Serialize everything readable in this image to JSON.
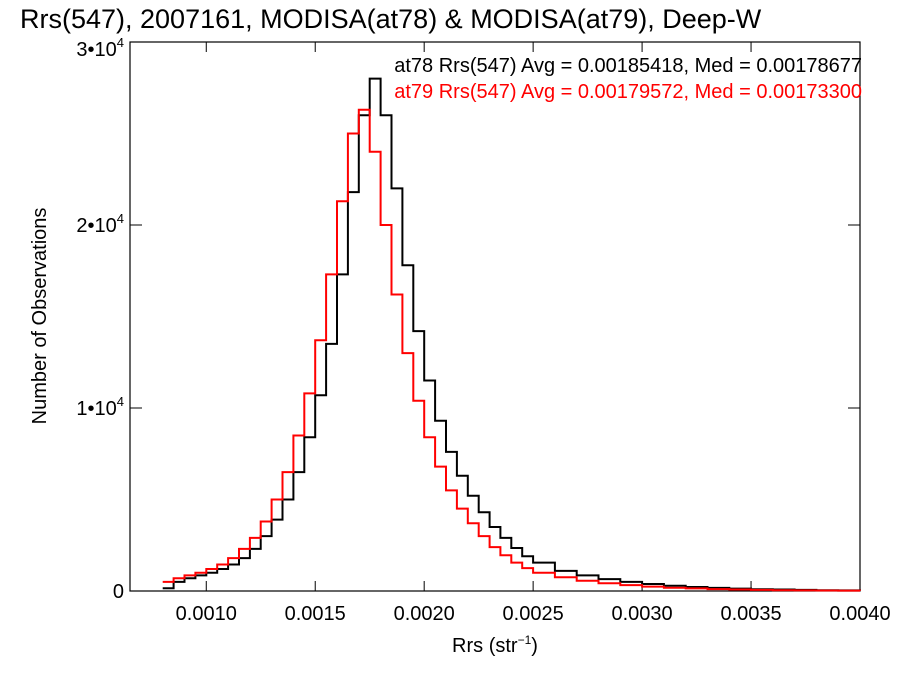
{
  "chart_data": {
    "type": "line",
    "title": "Rrs(547), 2007161, MODISA(at78) & MODISA(at79), Deep-W",
    "xlabel": "Rrs (str",
    "xlabel_sup": "−1",
    "xlabel_close": ")",
    "ylabel": "Number of Observations",
    "xlim": [
      0.00065,
      0.004
    ],
    "ylim": [
      0,
      30000
    ],
    "x_ticks": [
      {
        "value": 0.001,
        "label": "0.0010"
      },
      {
        "value": 0.0015,
        "label": "0.0015"
      },
      {
        "value": 0.002,
        "label": "0.0020"
      },
      {
        "value": 0.0025,
        "label": "0.0025"
      },
      {
        "value": 0.003,
        "label": "0.0030"
      },
      {
        "value": 0.0035,
        "label": "0.0035"
      },
      {
        "value": 0.004,
        "label": "0.0040"
      }
    ],
    "y_ticks": [
      {
        "value": 0,
        "label": "0",
        "sup": ""
      },
      {
        "value": 10000,
        "label": "1•10",
        "sup": "4"
      },
      {
        "value": 20000,
        "label": "2•10",
        "sup": "4"
      },
      {
        "value": 30000,
        "label": "3•10",
        "sup": "4"
      }
    ],
    "grid": false,
    "legend": "top-right",
    "series": [
      {
        "name": "at78",
        "annotation": "at78 Rrs(547) Avg = 0.00185418, Med = 0.00178677",
        "color": "#000000",
        "x": [
          0.0008,
          0.00085,
          0.0009,
          0.00095,
          0.001,
          0.00105,
          0.0011,
          0.00115,
          0.0012,
          0.00125,
          0.0013,
          0.00135,
          0.0014,
          0.00145,
          0.0015,
          0.00155,
          0.0016,
          0.00165,
          0.0017,
          0.00175,
          0.0018,
          0.00185,
          0.0019,
          0.00195,
          0.002,
          0.00205,
          0.0021,
          0.00215,
          0.0022,
          0.00225,
          0.0023,
          0.00235,
          0.0024,
          0.00245,
          0.0025,
          0.0026,
          0.0027,
          0.0028,
          0.0029,
          0.003,
          0.0031,
          0.0032,
          0.0033,
          0.0034,
          0.0035,
          0.0036,
          0.0037,
          0.0038,
          0.0039,
          0.004
        ],
        "values": [
          150,
          500,
          700,
          850,
          1000,
          1200,
          1450,
          1800,
          2300,
          3000,
          3900,
          5000,
          6500,
          8400,
          10700,
          13500,
          17300,
          21800,
          26000,
          28000,
          26000,
          22000,
          17800,
          14200,
          11500,
          9300,
          7600,
          6300,
          5200,
          4300,
          3500,
          2900,
          2350,
          1900,
          1550,
          1100,
          850,
          650,
          500,
          380,
          290,
          220,
          170,
          130,
          100,
          80,
          60,
          45,
          35,
          25
        ]
      },
      {
        "name": "at79",
        "annotation": "at79 Rrs(547) Avg = 0.00179572, Med = 0.00173300",
        "color": "#ff0000",
        "x": [
          0.0008,
          0.00085,
          0.0009,
          0.00095,
          0.001,
          0.00105,
          0.0011,
          0.00115,
          0.0012,
          0.00125,
          0.0013,
          0.00135,
          0.0014,
          0.00145,
          0.0015,
          0.00155,
          0.0016,
          0.00165,
          0.0017,
          0.00175,
          0.0018,
          0.00185,
          0.0019,
          0.00195,
          0.002,
          0.00205,
          0.0021,
          0.00215,
          0.0022,
          0.00225,
          0.0023,
          0.00235,
          0.0024,
          0.00245,
          0.0025,
          0.0026,
          0.0027,
          0.0028,
          0.0029,
          0.003,
          0.0031,
          0.0032,
          0.0033,
          0.0034,
          0.0035,
          0.0036,
          0.0037,
          0.0038,
          0.0039,
          0.004
        ],
        "values": [
          500,
          700,
          850,
          1000,
          1200,
          1450,
          1800,
          2300,
          2900,
          3800,
          5000,
          6500,
          8500,
          10800,
          13700,
          17300,
          21300,
          25000,
          26300,
          24000,
          20000,
          16200,
          13000,
          10400,
          8400,
          6800,
          5500,
          4500,
          3700,
          3000,
          2400,
          1950,
          1550,
          1250,
          1000,
          750,
          560,
          420,
          320,
          240,
          180,
          140,
          105,
          80,
          60,
          45,
          35,
          25,
          20,
          15
        ]
      }
    ]
  }
}
